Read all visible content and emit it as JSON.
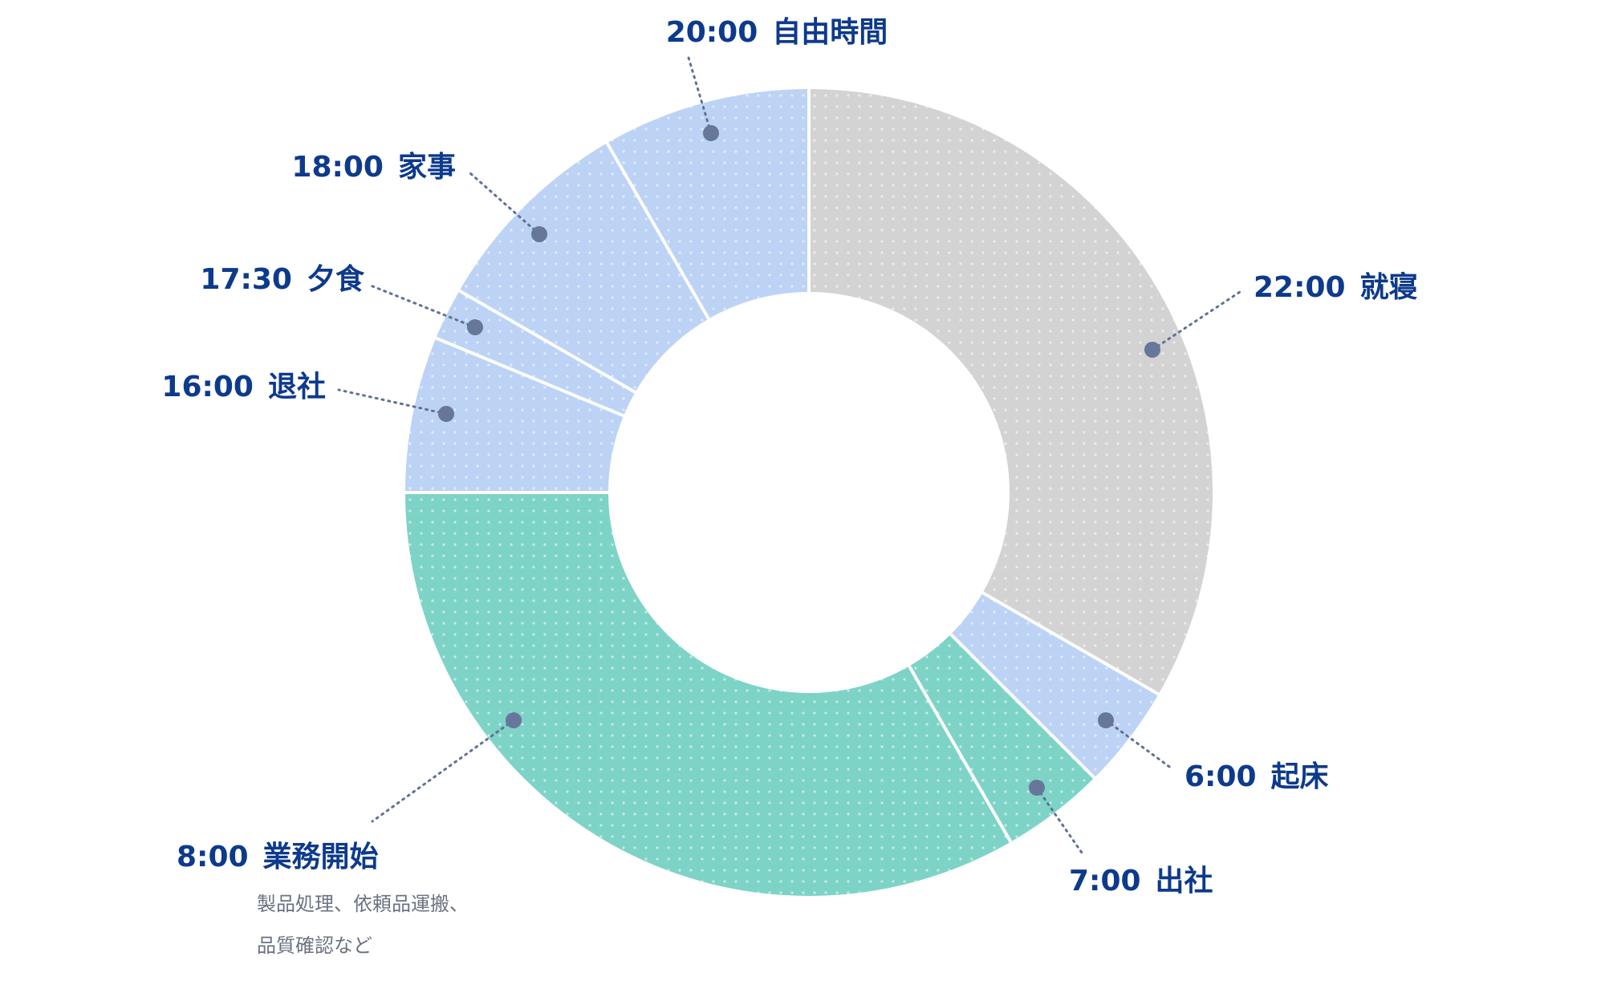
{
  "chart_data": {
    "type": "pie",
    "unit": "hours",
    "segments": [
      {
        "time": "22:00",
        "activity": "就寝",
        "value": 8,
        "color": "#d3d3d3"
      },
      {
        "time": "6:00",
        "activity": "起床",
        "value": 1,
        "color": "#bcd3f5"
      },
      {
        "time": "7:00",
        "activity": "出社",
        "value": 1,
        "color": "#7ed3c7"
      },
      {
        "time": "8:00",
        "activity": "業務開始",
        "value": 8,
        "color": "#7ed3c7",
        "note": [
          "製品処理、依頼品運搬、",
          "品質確認など"
        ]
      },
      {
        "time": "16:00",
        "activity": "退社",
        "value": 1.5,
        "color": "#bcd3f5"
      },
      {
        "time": "17:30",
        "activity": "夕食",
        "value": 0.5,
        "color": "#bcd3f5"
      },
      {
        "time": "18:00",
        "activity": "家事",
        "value": 2,
        "color": "#bcd3f5"
      },
      {
        "time": "20:00",
        "activity": "自由時間",
        "value": 2,
        "color": "#bcd3f5"
      }
    ]
  },
  "colors": {
    "label_text": "#0d3a8c",
    "note_text": "#6a7282",
    "leader_line": "#5f7294",
    "separator": "#ffffff"
  }
}
